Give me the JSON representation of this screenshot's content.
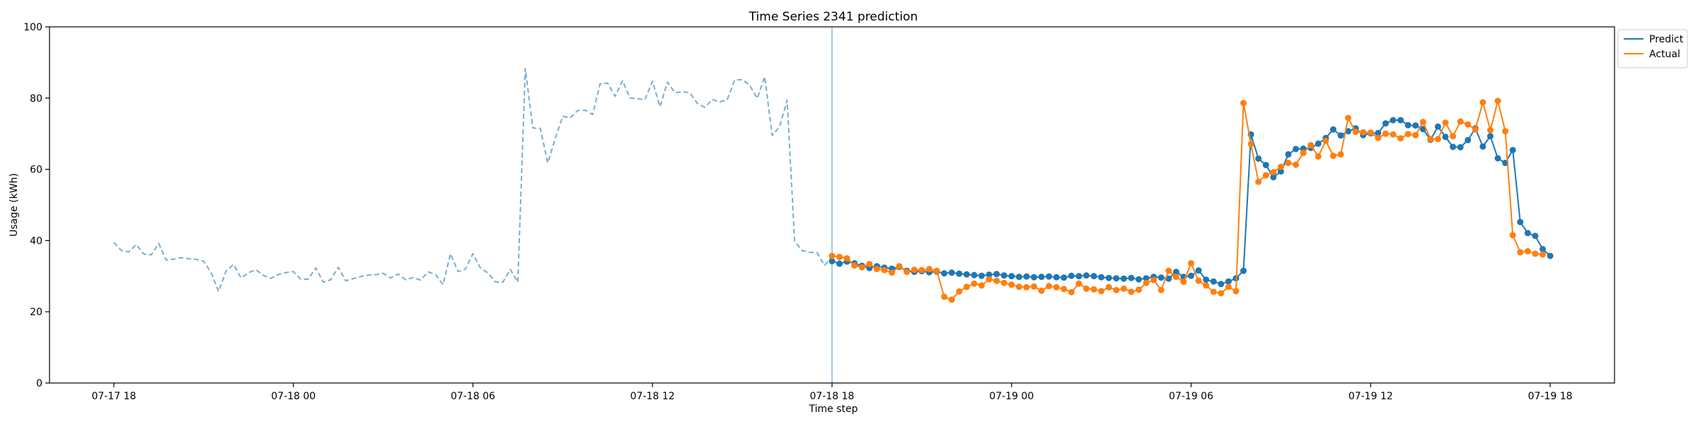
{
  "chart_data": {
    "type": "line",
    "title": "Time Series 2341 prediction",
    "xlabel": "Time step",
    "ylabel": "Usage (kWh)",
    "ylim": [
      0,
      100
    ],
    "yticks": [
      0,
      20,
      40,
      60,
      80,
      100
    ],
    "xlim": [
      "2024-07-17 15:51",
      "2024-07-19 20:09"
    ],
    "xticks": [
      {
        "t": "2024-07-17 18:00",
        "label": "07-17 18"
      },
      {
        "t": "2024-07-18 00:00",
        "label": "07-18 00"
      },
      {
        "t": "2024-07-18 06:00",
        "label": "07-18 06"
      },
      {
        "t": "2024-07-18 12:00",
        "label": "07-18 12"
      },
      {
        "t": "2024-07-18 18:00",
        "label": "07-18 18"
      },
      {
        "t": "2024-07-19 00:00",
        "label": "07-19 00"
      },
      {
        "t": "2024-07-19 06:00",
        "label": "07-19 06"
      },
      {
        "t": "2024-07-19 12:00",
        "label": "07-19 12"
      },
      {
        "t": "2024-07-19 18:00",
        "label": "07-19 18"
      }
    ],
    "grid": false,
    "legend": "upper right, outside plot",
    "forecast_start": "2024-07-18 18:00",
    "sampling_minutes": 15,
    "series": [
      {
        "name": "",
        "role": "history",
        "color": "#1f77b4",
        "style": "dashed",
        "start": "2024-07-17 18:00",
        "values": [
          39.5,
          37.2,
          36.8,
          38.9,
          36.2,
          36.0,
          39.2,
          34.5,
          34.8,
          35.2,
          34.9,
          34.7,
          34.2,
          31.0,
          25.7,
          31.5,
          33.3,
          29.5,
          31.0,
          31.8,
          30.2,
          29.4,
          30.5,
          31.0,
          31.3,
          29.1,
          29.2,
          32.3,
          28.3,
          29.0,
          32.5,
          28.7,
          29.3,
          29.9,
          30.3,
          30.4,
          30.8,
          29.5,
          30.6,
          29.0,
          29.6,
          28.9,
          31.2,
          30.5,
          27.6,
          36.3,
          31.3,
          32.0,
          36.3,
          32.3,
          30.9,
          28.4,
          28.3,
          31.9,
          28.3,
          88.3,
          71.6,
          71.5,
          61.8,
          68.6,
          74.9,
          74.4,
          76.5,
          76.6,
          75.4,
          84.0,
          84.2,
          80.5,
          84.9,
          80.0,
          79.8,
          79.6,
          84.7,
          77.6,
          84.5,
          81.5,
          81.8,
          81.5,
          78.5,
          77.4,
          79.6,
          78.9,
          79.6,
          85.1,
          85.2,
          83.6,
          79.9,
          86.0,
          69.5,
          72.0,
          79.4,
          39.8,
          37.2,
          36.7,
          36.6,
          33.0,
          35.5
        ]
      },
      {
        "name": "Predict",
        "role": "prediction",
        "color": "#1f77b4",
        "style": "solid-markers",
        "start": "2024-07-18 18:00",
        "values": [
          34.2,
          33.5,
          34.1,
          33.6,
          32.9,
          32.3,
          32.8,
          32.4,
          32.1,
          32.6,
          31.5,
          31.2,
          31.4,
          31.1,
          31.3,
          30.8,
          31.0,
          30.7,
          30.5,
          30.3,
          30.1,
          30.4,
          30.6,
          30.2,
          30.0,
          29.8,
          29.9,
          29.7,
          29.8,
          29.9,
          29.7,
          29.6,
          30.1,
          30.0,
          30.2,
          30.0,
          29.7,
          29.5,
          29.4,
          29.3,
          29.5,
          29.1,
          29.4,
          29.8,
          29.6,
          29.3,
          31.2,
          29.8,
          30.1,
          31.6,
          29.0,
          28.5,
          27.8,
          28.5,
          29.4,
          31.5,
          69.8,
          63.0,
          61.2,
          57.8,
          59.4,
          64.2,
          65.7,
          65.8,
          66.0,
          67.2,
          68.8,
          71.2,
          69.5,
          70.7,
          71.5,
          69.6,
          70.1,
          70.2,
          72.9,
          73.8,
          73.8,
          72.4,
          72.3,
          71.3,
          68.3,
          72.0,
          69.1,
          66.3,
          66.2,
          68.2,
          71.5,
          66.4,
          69.3,
          63.1,
          61.8,
          65.4,
          45.2,
          42.1,
          41.3,
          37.6,
          35.7
        ]
      },
      {
        "name": "Actual",
        "role": "actual",
        "color": "#ff7f0e",
        "style": "solid-markers",
        "start": "2024-07-18 18:00",
        "values": [
          35.7,
          35.4,
          35.0,
          33.0,
          32.5,
          33.4,
          32.0,
          31.7,
          31.0,
          32.8,
          31.2,
          31.8,
          31.7,
          32.0,
          31.5,
          24.2,
          23.4,
          25.7,
          27.0,
          27.9,
          27.4,
          29.1,
          28.7,
          28.1,
          27.6,
          27.0,
          26.9,
          27.1,
          25.9,
          27.2,
          26.9,
          26.4,
          25.5,
          27.9,
          26.5,
          26.3,
          25.8,
          26.9,
          26.1,
          26.5,
          25.6,
          26.2,
          28.1,
          28.9,
          26.1,
          31.5,
          29.8,
          28.4,
          33.6,
          28.7,
          27.4,
          25.6,
          25.2,
          27.0,
          25.8,
          78.6,
          67.1,
          56.5,
          58.3,
          59.2,
          60.7,
          61.8,
          61.3,
          64.6,
          66.8,
          63.6,
          68.0,
          63.8,
          64.2,
          74.4,
          70.5,
          70.4,
          70.3,
          68.8,
          70.0,
          69.8,
          68.7,
          69.9,
          69.6,
          73.3,
          68.5,
          68.5,
          73.1,
          69.3,
          73.4,
          72.6,
          71.2,
          78.8,
          71.0,
          79.2,
          70.7,
          41.5,
          36.7,
          37.0,
          36.3,
          36.1
        ]
      }
    ]
  }
}
